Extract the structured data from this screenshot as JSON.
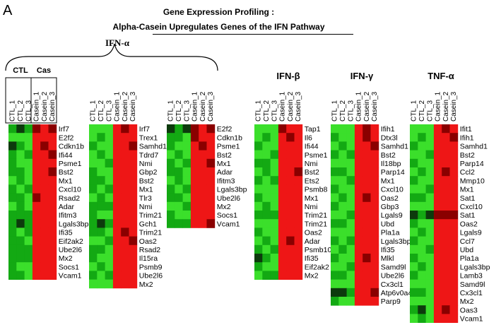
{
  "figure": {
    "panel_label": "A",
    "title_line1": "Gene Expression Profiling :",
    "title_line2": "Alpha-Casein Upregulates Genes of the IFN Pathway"
  },
  "groups": {
    "ifn_alpha": "IFN-α",
    "ifn_beta": "IFN-β",
    "ifn_gamma": "IFN-γ",
    "tnf_alpha": "TNF-α"
  },
  "subgroups": {
    "ctl": "CTL",
    "cas": "Cas"
  },
  "colors": {
    "green": "#22dd22",
    "red": "#ee1111",
    "dark": "#1a1a1a",
    "background": "#ffffff"
  },
  "chart_data": [
    {
      "type": "heatmap",
      "group": "IFN-α",
      "columns": [
        "CTL_1",
        "CTL_2",
        "CTL_3",
        "Casein_1",
        "Casein_2",
        "Casein_3"
      ],
      "rows": [
        "Irf7",
        "E2f2",
        "Cdkn1b",
        "Ifi44",
        "Psme1",
        "Bst2",
        "Mx1",
        "Cxcl10",
        "Rsad2",
        "Adar",
        "Ifitm3",
        "Lgals3bp",
        "Ifi35",
        "Eif2ak2",
        "Ube2l6",
        "Mx2",
        "Socs1",
        "Vcam1"
      ],
      "values": [
        [
          -2,
          -3,
          -2,
          3,
          2,
          3
        ],
        [
          -1,
          -1,
          -1,
          2,
          2,
          2
        ],
        [
          -3,
          -2,
          -1,
          2,
          3,
          2
        ],
        [
          -2,
          -1,
          -2,
          2,
          2,
          3
        ],
        [
          -2,
          -1,
          -1,
          2,
          2,
          2
        ],
        [
          -2,
          -2,
          -1,
          2,
          2,
          3
        ],
        [
          -1,
          -2,
          -1,
          2,
          2,
          2
        ],
        [
          -2,
          -1,
          -2,
          2,
          2,
          2
        ],
        [
          -2,
          -2,
          -1,
          3,
          2,
          2
        ],
        [
          -1,
          -2,
          -1,
          2,
          2,
          2
        ],
        [
          -2,
          -2,
          -2,
          2,
          2,
          2
        ],
        [
          -2,
          -3,
          -2,
          2,
          2,
          2
        ],
        [
          -2,
          -1,
          -2,
          2,
          2,
          2
        ],
        [
          -2,
          -2,
          -1,
          2,
          2,
          2
        ],
        [
          -2,
          -2,
          -2,
          2,
          2,
          2
        ],
        [
          -2,
          -2,
          -2,
          2,
          2,
          2
        ],
        [
          -2,
          -1,
          -1,
          2,
          2,
          2
        ],
        [
          -2,
          -2,
          -1,
          2,
          2,
          2
        ]
      ]
    },
    {
      "type": "heatmap",
      "group": "IFN-α",
      "columns": [
        "CTL_1",
        "CTL_2",
        "CTL_3",
        "Casein_1",
        "Casein_2",
        "Casein_3"
      ],
      "rows": [
        "Irf7",
        "Trex1",
        "Samhd1",
        "Tdrd7",
        "Nmi",
        "Gbp2",
        "Bst2",
        "Mx1",
        "Tlr3",
        "Nmi",
        "Trim21",
        "Gch1",
        "Trim21",
        "Oas2",
        "Rsad2",
        "Il15ra",
        "Psmb9",
        "Ube2l6",
        "Mx2"
      ],
      "values": [
        [
          -1,
          -1,
          -1,
          2,
          3,
          2
        ],
        [
          -1,
          -2,
          -1,
          2,
          2,
          2
        ],
        [
          -2,
          -1,
          -1,
          2,
          2,
          3
        ],
        [
          -1,
          -2,
          -1,
          2,
          2,
          2
        ],
        [
          -1,
          -1,
          -2,
          2,
          2,
          2
        ],
        [
          -2,
          -1,
          -1,
          2,
          2,
          2
        ],
        [
          -2,
          -2,
          -1,
          2,
          2,
          2
        ],
        [
          -2,
          -1,
          -2,
          2,
          2,
          2
        ],
        [
          -1,
          -2,
          -1,
          2,
          2,
          2
        ],
        [
          -2,
          -2,
          -2,
          2,
          2,
          2
        ],
        [
          -2,
          -1,
          -1,
          2,
          2,
          2
        ],
        [
          -2,
          -3,
          -2,
          2,
          2,
          2
        ],
        [
          -2,
          -2,
          -1,
          2,
          3,
          2
        ],
        [
          -1,
          -1,
          -2,
          2,
          2,
          3
        ],
        [
          -2,
          -2,
          -1,
          2,
          2,
          2
        ],
        [
          -2,
          -1,
          -1,
          2,
          2,
          2
        ],
        [
          -1,
          -2,
          -1,
          2,
          2,
          2
        ],
        [
          -2,
          -1,
          -2,
          2,
          2,
          2
        ],
        [
          -1,
          -1,
          -1,
          2,
          2,
          2
        ]
      ]
    },
    {
      "type": "heatmap",
      "group": "IFN-α",
      "columns": [
        "CTL_1",
        "CTL_2",
        "CTL_3",
        "Casein_1",
        "Casein_2",
        "Casein_3"
      ],
      "rows": [
        "E2f2",
        "Cdkn1b",
        "Psme1",
        "Bst2",
        "Mx1",
        "Adar",
        "Ifitm3",
        "Lgals3bp",
        "Ube2l6",
        "Mx2",
        "Socs1",
        "Vcam1"
      ],
      "values": [
        [
          -3,
          -2,
          -3,
          3,
          2,
          3
        ],
        [
          -2,
          -2,
          -1,
          3,
          2,
          2
        ],
        [
          -2,
          -1,
          -1,
          2,
          3,
          2
        ],
        [
          -1,
          -2,
          -1,
          2,
          2,
          2
        ],
        [
          -2,
          -1,
          -2,
          2,
          2,
          3
        ],
        [
          -2,
          -2,
          -1,
          2,
          2,
          2
        ],
        [
          -1,
          -2,
          -1,
          2,
          2,
          2
        ],
        [
          -2,
          -1,
          -2,
          2,
          2,
          2
        ],
        [
          -2,
          -2,
          -1,
          2,
          2,
          2
        ],
        [
          -1,
          -1,
          -2,
          2,
          2,
          2
        ],
        [
          -2,
          -1,
          -1,
          2,
          2,
          2
        ],
        [
          -2,
          -2,
          -2,
          2,
          2,
          3
        ]
      ]
    },
    {
      "type": "heatmap",
      "group": "IFN-β",
      "columns": [
        "CTL_1",
        "CTL_2",
        "CTL_3",
        "Casein_1",
        "Casein_2",
        "Casein_3"
      ],
      "rows": [
        "Tap1",
        "Il6",
        "Ifi44",
        "Psme1",
        "Nmi",
        "Bst2",
        "Ets2",
        "Psmb8",
        "Mx1",
        "Nmi",
        "Trim21",
        "Trim21",
        "Oas2",
        "Adar",
        "Psmb10",
        "Ifi35",
        "Eif2ak2",
        "Mx2"
      ],
      "values": [
        [
          -1,
          -1,
          -1,
          3,
          2,
          2
        ],
        [
          -1,
          -2,
          -1,
          2,
          3,
          2
        ],
        [
          -2,
          -1,
          -1,
          2,
          2,
          2
        ],
        [
          -1,
          -1,
          -2,
          2,
          2,
          2
        ],
        [
          -2,
          -2,
          -1,
          2,
          2,
          2
        ],
        [
          -1,
          -2,
          -1,
          2,
          2,
          3
        ],
        [
          -2,
          -1,
          -2,
          2,
          2,
          2
        ],
        [
          -1,
          -1,
          -1,
          2,
          2,
          2
        ],
        [
          -2,
          -1,
          -1,
          2,
          2,
          2
        ],
        [
          -1,
          -2,
          -1,
          2,
          2,
          2
        ],
        [
          -2,
          -2,
          -2,
          2,
          2,
          2
        ],
        [
          -1,
          -1,
          -1,
          2,
          2,
          2
        ],
        [
          -2,
          -1,
          -1,
          2,
          2,
          2
        ],
        [
          -1,
          -2,
          -1,
          2,
          3,
          2
        ],
        [
          -2,
          -1,
          -2,
          2,
          2,
          2
        ],
        [
          -3,
          -2,
          -1,
          2,
          2,
          2
        ],
        [
          -2,
          -1,
          -1,
          2,
          2,
          2
        ],
        [
          -1,
          -2,
          -2,
          2,
          2,
          2
        ]
      ]
    },
    {
      "type": "heatmap",
      "group": "IFN-γ",
      "columns": [
        "CTL_1",
        "CTL_2",
        "CTL_3",
        "Casein_1",
        "Casein_2",
        "Casein_3"
      ],
      "rows": [
        "Ifih1",
        "Dtx3l",
        "Samhd1",
        "Bst2",
        "Il18bp",
        "Parp14",
        "Mx1",
        "Cxcl10",
        "Oas2",
        "Gbp3",
        "Lgals9",
        "Ubd",
        "Pla1a",
        "Lgals3bp",
        "Ifi35",
        "Mlkl",
        "Samd9l",
        "Ube2l6",
        "Cx3cl1",
        "Atp6v0a4",
        "Parp9"
      ],
      "values": [
        [
          -1,
          -1,
          -1,
          2,
          3,
          2
        ],
        [
          -2,
          -1,
          -1,
          2,
          3,
          2
        ],
        [
          -1,
          -2,
          -1,
          2,
          2,
          3
        ],
        [
          -2,
          -1,
          -2,
          2,
          2,
          2
        ],
        [
          -1,
          -1,
          -1,
          2,
          2,
          2
        ],
        [
          -2,
          -2,
          -1,
          2,
          2,
          2
        ],
        [
          -1,
          -1,
          -2,
          2,
          2,
          2
        ],
        [
          -2,
          -1,
          -1,
          2,
          2,
          2
        ],
        [
          -1,
          -2,
          -1,
          2,
          3,
          2
        ],
        [
          -2,
          -1,
          -1,
          2,
          2,
          2
        ],
        [
          -1,
          -1,
          -2,
          2,
          2,
          2
        ],
        [
          -2,
          -2,
          -1,
          2,
          2,
          2
        ],
        [
          -1,
          -1,
          -1,
          2,
          2,
          2
        ],
        [
          -2,
          -1,
          -2,
          2,
          2,
          2
        ],
        [
          -1,
          -2,
          -1,
          2,
          2,
          2
        ],
        [
          -2,
          -1,
          -1,
          2,
          3,
          2
        ],
        [
          -1,
          -1,
          -2,
          2,
          2,
          2
        ],
        [
          -2,
          -2,
          -1,
          2,
          2,
          2
        ],
        [
          -1,
          -1,
          -1,
          2,
          2,
          2
        ],
        [
          -3,
          -3,
          -2,
          2,
          2,
          3
        ],
        [
          -2,
          -1,
          -1,
          2,
          2,
          2
        ]
      ]
    },
    {
      "type": "heatmap",
      "group": "TNF-α",
      "columns": [
        "CTL_1",
        "CTL_2",
        "CTL_3",
        "Casein_1",
        "Casein_2",
        "Casein_3"
      ],
      "rows": [
        "Ifit1",
        "Ifih1",
        "Samhd1",
        "Bst2",
        "Parp14",
        "Ccl2",
        "Mmp10",
        "Mx1",
        "Sat1",
        "Cxcl10",
        "Sat1",
        "Oas2",
        "Lgals9",
        "Ccl7",
        "Ubd",
        "Pla1a",
        "Lgals3bp",
        "Lamb3",
        "Samd9l",
        "Cx3cl1",
        "Mx2",
        "Oas3",
        "Vcam1"
      ],
      "values": [
        [
          -1,
          -1,
          -1,
          2,
          3,
          2
        ],
        [
          -1,
          -2,
          -1,
          2,
          2,
          3
        ],
        [
          -2,
          -1,
          -1,
          2,
          2,
          2
        ],
        [
          -1,
          -1,
          -2,
          2,
          2,
          2
        ],
        [
          -2,
          -1,
          -1,
          2,
          2,
          2
        ],
        [
          -1,
          -2,
          -1,
          2,
          3,
          2
        ],
        [
          -2,
          -1,
          -1,
          2,
          2,
          2
        ],
        [
          -1,
          -1,
          -2,
          2,
          2,
          2
        ],
        [
          -2,
          -2,
          -1,
          2,
          2,
          2
        ],
        [
          -1,
          -1,
          -1,
          2,
          2,
          2
        ],
        [
          -3,
          -2,
          -3,
          3,
          3,
          3
        ],
        [
          -2,
          -1,
          -1,
          2,
          2,
          2
        ],
        [
          -1,
          -2,
          -1,
          2,
          2,
          2
        ],
        [
          -2,
          -1,
          -1,
          2,
          2,
          2
        ],
        [
          -1,
          -1,
          -2,
          2,
          2,
          2
        ],
        [
          -2,
          -1,
          -1,
          2,
          2,
          2
        ],
        [
          -1,
          -2,
          -1,
          2,
          2,
          2
        ],
        [
          -2,
          -1,
          -1,
          2,
          2,
          2
        ],
        [
          -1,
          -1,
          -1,
          2,
          2,
          2
        ],
        [
          -2,
          -2,
          -1,
          2,
          2,
          2
        ],
        [
          -1,
          -1,
          -1,
          2,
          2,
          2
        ],
        [
          -2,
          -3,
          -1,
          2,
          3,
          2
        ],
        [
          -1,
          -2,
          -1,
          2,
          2,
          2
        ]
      ]
    }
  ]
}
